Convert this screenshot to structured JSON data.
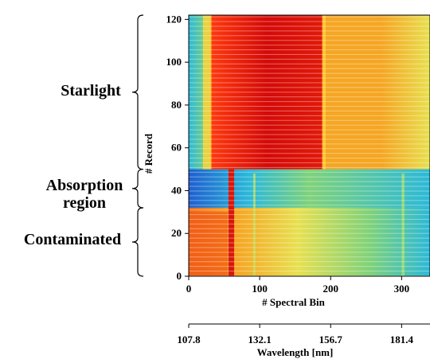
{
  "chart_data": {
    "type": "heatmap",
    "title": "",
    "xlabel": "# Spectral Bin",
    "ylabel": "# Record",
    "secondary_xlabel": "Wavelength [nm]",
    "xlim": [
      0,
      340
    ],
    "ylim": [
      0,
      122
    ],
    "x_ticks": [
      0,
      100,
      200,
      300
    ],
    "y_ticks": [
      0,
      20,
      40,
      60,
      80,
      100,
      120
    ],
    "secondary_x_ticks": [
      107.8,
      132.1,
      156.7,
      181.4
    ],
    "secondary_x_tick_bins": [
      0,
      100,
      200,
      300
    ],
    "grid": false,
    "colormap": "jet",
    "regions": [
      {
        "label": "Starlight",
        "record_range": [
          50,
          122
        ]
      },
      {
        "label": "Absorption region",
        "record_range": [
          32,
          50
        ]
      },
      {
        "label": "Contaminated",
        "record_range": [
          0,
          32
        ]
      }
    ],
    "features": [
      {
        "description": "intense band",
        "bin_range": [
          30,
          190
        ],
        "record_range": [
          50,
          122
        ]
      },
      {
        "description": "strong line",
        "bin": 60,
        "record_range": [
          0,
          50
        ]
      }
    ]
  },
  "labels": {
    "starlight": "Starlight",
    "absorption": "Absorption region",
    "contaminated": "Contaminated"
  },
  "colors": {
    "red": "#e0150c",
    "orange": "#f5a623",
    "yellow": "#e8e050",
    "green": "#7fd27a",
    "cyan": "#2cb9d8",
    "blue": "#1f5fd0"
  }
}
